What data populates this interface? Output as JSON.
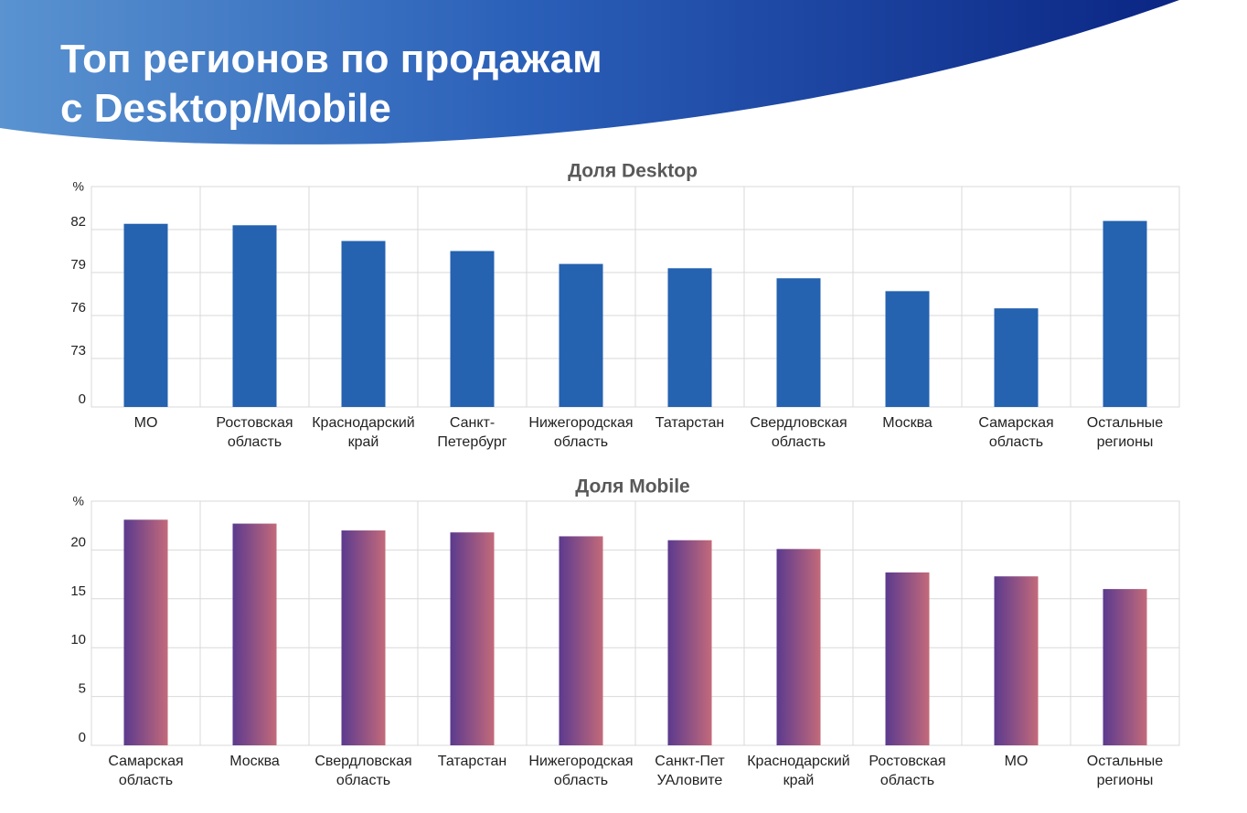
{
  "header": {
    "title": "Топ регионов по продажам\nс Desktop/Mobile"
  },
  "chart_data": [
    {
      "type": "bar",
      "title": "Доля Desktop",
      "y_unit": "%",
      "categories": [
        "МО",
        "Ростовская\nобласть",
        "Краснодарский\nкрай",
        "Санкт-\nПетербург",
        "Нижегородская\nобласть",
        "Татарстан",
        "Свердловская\nобласть",
        "Москва",
        "Самарская\nобласть",
        "Остальные\nрегионы"
      ],
      "values": [
        82.4,
        82.3,
        81.2,
        80.5,
        79.6,
        79.3,
        78.6,
        77.7,
        76.5,
        82.6
      ],
      "color": "#2562b0",
      "ylim": [
        0,
        85
      ],
      "yticks": [
        0,
        73,
        76,
        79,
        82
      ],
      "y_axis_break": true,
      "grid": true
    },
    {
      "type": "bar",
      "title": "Доля Mobile",
      "y_unit": "%",
      "categories": [
        "Самарская\nобласть",
        "Москва",
        "Свердловская\nобласть",
        "Татарстан",
        "Нижегородская\nобласть",
        "Санкт-Пет\nУАловите",
        "Краснодарский\nкрай",
        "Ростовская\nобласть",
        "МО",
        "Остальные\nрегионы"
      ],
      "values": [
        23.1,
        22.7,
        22.0,
        21.8,
        21.4,
        21.0,
        20.1,
        17.7,
        17.3,
        16.0
      ],
      "colors": [
        "#5b3a8e",
        "#c36a7a"
      ],
      "ylim": [
        0,
        25
      ],
      "yticks": [
        0,
        5,
        10,
        15,
        20
      ],
      "grid": true
    }
  ]
}
